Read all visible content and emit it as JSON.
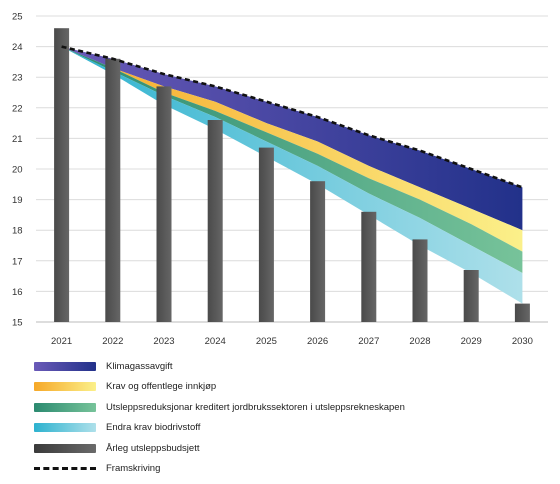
{
  "chart_data": {
    "type": "area",
    "x": [
      "2021",
      "2022",
      "2023",
      "2024",
      "2025",
      "2026",
      "2027",
      "2028",
      "2029",
      "2030"
    ],
    "ylim": [
      15,
      25
    ],
    "yticks": [
      15,
      16,
      17,
      18,
      19,
      20,
      21,
      22,
      23,
      24,
      25
    ],
    "grid": true,
    "bars": {
      "name": "Årleg utsleppsbudsjett",
      "values": [
        24.6,
        23.6,
        22.7,
        21.6,
        20.7,
        19.6,
        18.6,
        17.7,
        16.7,
        15.6
      ]
    },
    "projection": {
      "name": "Framskriving",
      "values": [
        24.0,
        23.6,
        23.1,
        22.7,
        22.2,
        21.7,
        21.1,
        20.6,
        20.0,
        19.4
      ]
    },
    "bands": [
      {
        "name": "Klimagassavgift",
        "upper": [
          24.0,
          23.6,
          23.1,
          22.7,
          22.2,
          21.7,
          21.1,
          20.6,
          20.0,
          19.4
        ],
        "lower": [
          24.0,
          23.3,
          22.7,
          22.2,
          21.5,
          20.9,
          20.1,
          19.4,
          18.7,
          18.0
        ]
      },
      {
        "name": "Krav og offentlege innkjøp",
        "upper": [
          24.0,
          23.3,
          22.7,
          22.2,
          21.5,
          20.9,
          20.1,
          19.4,
          18.7,
          18.0
        ],
        "lower": [
          24.0,
          23.3,
          22.5,
          21.9,
          21.2,
          20.5,
          19.7,
          19.0,
          18.2,
          17.3
        ]
      },
      {
        "name": "Utsleppsreduksjonar kreditert jordbrukssektoren i utsleppsrekneskapen",
        "upper": [
          24.0,
          23.3,
          22.5,
          21.9,
          21.2,
          20.5,
          19.7,
          19.0,
          18.2,
          17.3
        ],
        "lower": [
          24.0,
          23.2,
          22.4,
          21.7,
          20.9,
          20.1,
          19.2,
          18.4,
          17.5,
          16.6
        ]
      },
      {
        "name": "Endra krav biodrivstoff",
        "upper": [
          24.0,
          23.2,
          22.4,
          21.7,
          20.9,
          20.1,
          19.2,
          18.4,
          17.5,
          16.6
        ],
        "lower": [
          24.0,
          23.1,
          22.1,
          21.3,
          20.4,
          19.5,
          18.5,
          17.5,
          16.6,
          15.6
        ]
      }
    ],
    "legend": [
      {
        "label": "Klimagassavgift",
        "colors": [
          "#6a5ab8",
          "#22318a"
        ]
      },
      {
        "label": "Krav og offentlege innkjøp",
        "colors": [
          "#f6a828",
          "#fbf08a"
        ]
      },
      {
        "label": "Utsleppsreduksjonar kreditert jordbrukssektoren i utsleppsrekneskapen",
        "colors": [
          "#2b8a70",
          "#77c39a"
        ]
      },
      {
        "label": "Endra krav biodrivstoff",
        "colors": [
          "#2db2cf",
          "#aee0ea"
        ]
      },
      {
        "label": "Årleg utsleppsbudsjett",
        "colors": [
          "#3a3a3a",
          "#6a6a6a"
        ]
      },
      {
        "label": "Framskriving",
        "colors": [
          "#111111"
        ]
      }
    ]
  }
}
